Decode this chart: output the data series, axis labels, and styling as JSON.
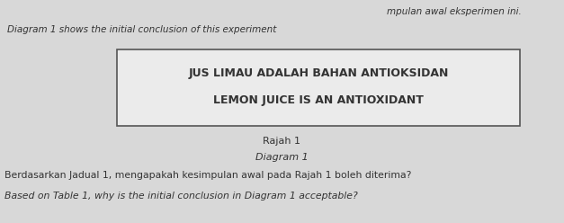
{
  "bg_color": "#d8d8d8",
  "page_color": "#f0eeec",
  "top_text_1": "mpulan awal eksperimen ini.",
  "top_text_2": "Diagram 1 shows the initial conclusion of this experiment",
  "box_line1": "JUS LIMAU ADALAH BAHAN ANTIOKSIDAN",
  "box_line2": "LEMON JUICE IS AN ANTIOXIDANT",
  "rajah_label": "Rajah 1",
  "diagram_label": "Diagram 1",
  "bottom_text_1": "Berdasarkan Jadual 1, mengapakah kesimpulan awal pada Rajah 1 boleh diterima?",
  "bottom_text_2": "Based on Table 1, why is the initial conclusion in Diagram 1 acceptable?",
  "font_color": "#333333",
  "box_edge_color": "#555555",
  "box_face_color": "#ebebeb"
}
